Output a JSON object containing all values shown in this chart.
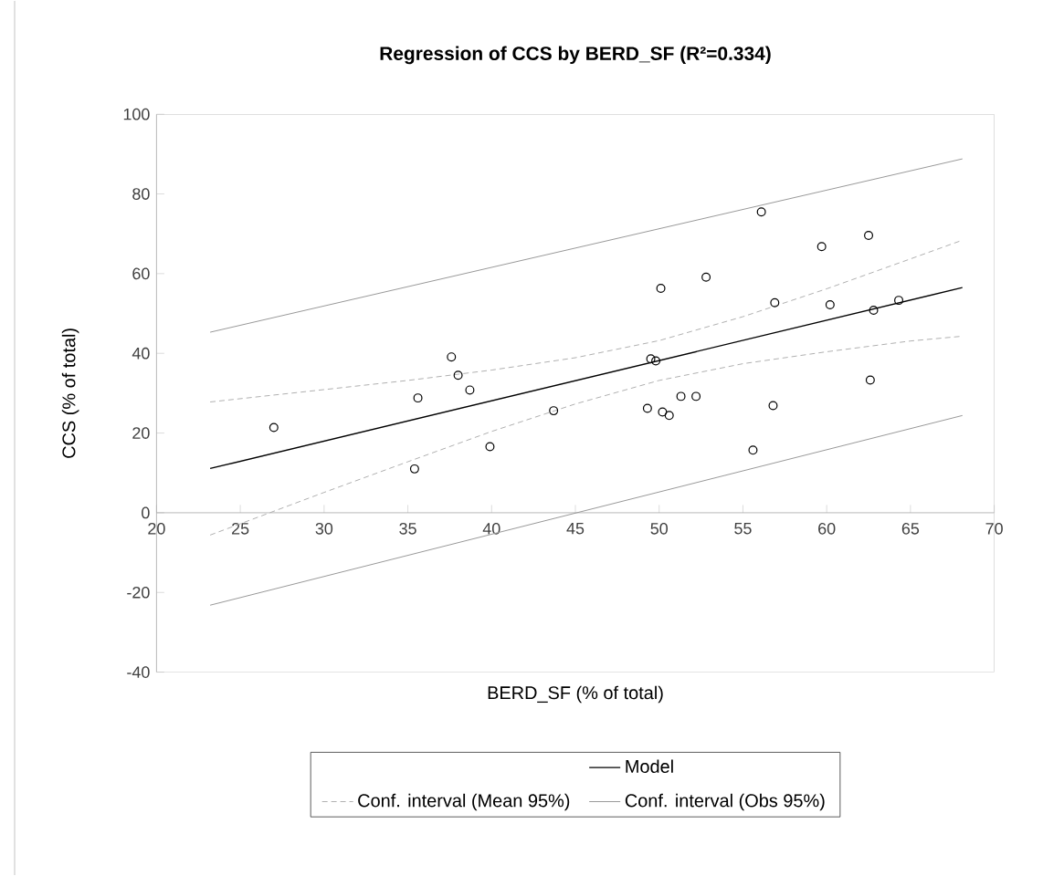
{
  "chart_data": {
    "type": "scatter",
    "title": "Regression of CCS by BERD_SF (R²=0.334)",
    "xlabel": "BERD_SF (% of total)",
    "ylabel": "CCS (% of total)",
    "xlim": [
      20,
      70
    ],
    "xticks": [
      20,
      25,
      30,
      35,
      40,
      45,
      50,
      55,
      60,
      65,
      70
    ],
    "ylim": [
      -40,
      100
    ],
    "yticks": [
      -40,
      -20,
      0,
      20,
      40,
      60,
      80,
      100
    ],
    "legend": "bottom",
    "grid": false,
    "series": [
      {
        "color": "#000000",
        "marker": "circle",
        "x": [
          27.0,
          35.6,
          35.4,
          37.6,
          38.0,
          38.7,
          39.9,
          43.7,
          56.1,
          59.7,
          62.5,
          52.8,
          50.1,
          56.9,
          60.2,
          62.8,
          64.3,
          49.5,
          49.8,
          62.6,
          49.3,
          50.2,
          50.6,
          51.3,
          52.2,
          56.8,
          55.6
        ],
        "values": [
          21.4,
          28.8,
          11.0,
          39.1,
          34.5,
          30.8,
          16.6,
          25.6,
          75.5,
          66.8,
          69.6,
          59.1,
          56.3,
          52.7,
          52.2,
          50.8,
          53.3,
          38.6,
          38.1,
          33.3,
          26.2,
          25.3,
          24.4,
          29.2,
          29.2,
          26.9,
          15.7
        ]
      },
      {
        "type": "line",
        "name": "Model",
        "color": "#000000",
        "line_style": "solid",
        "marker": "none",
        "x": [
          23.2,
          68.1
        ],
        "values": [
          11.1,
          56.5
        ]
      },
      {
        "type": "line",
        "name": "Conf. interval (Mean 95%)",
        "color": "#b0b0b0",
        "line_style": "dashed",
        "marker": "none",
        "x": [
          23.2,
          30,
          35,
          40,
          45,
          50,
          55,
          60,
          65,
          68.1
        ],
        "values": [
          27.8,
          30.9,
          33.2,
          35.8,
          38.9,
          43.2,
          49.2,
          56.2,
          63.7,
          68.4
        ]
      },
      {
        "type": "line",
        "color": "#b0b0b0",
        "line_style": "dashed",
        "marker": "none",
        "x": [
          23.2,
          30,
          35,
          40,
          45,
          50,
          55,
          60,
          65,
          68.1
        ],
        "values": [
          -5.6,
          5.1,
          12.8,
          20.4,
          27.3,
          33.2,
          37.4,
          40.4,
          43.1,
          44.3
        ]
      },
      {
        "type": "line",
        "name": "Conf. interval (Obs 95%)",
        "color": "#999999",
        "line_style": "solid",
        "marker": "none",
        "x": [
          23.2,
          68.1
        ],
        "values": [
          45.3,
          88.8
        ]
      },
      {
        "type": "line",
        "color": "#999999",
        "line_style": "solid",
        "marker": "none",
        "x": [
          23.2,
          68.1
        ],
        "values": [
          -23.2,
          24.4
        ]
      }
    ]
  }
}
